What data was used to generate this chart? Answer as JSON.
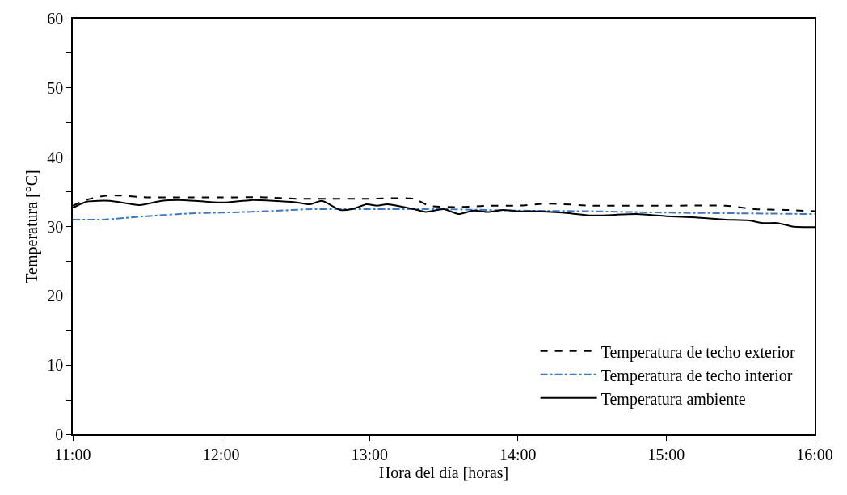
{
  "chart_data": {
    "type": "line",
    "xlabel": "Hora del día [horas]",
    "ylabel": "Temperatura [°C]",
    "xlim": [
      11,
      16
    ],
    "xticks": [
      {
        "value": 11,
        "label": "11:00"
      },
      {
        "value": 12,
        "label": "12:00"
      },
      {
        "value": 13,
        "label": "13:00"
      },
      {
        "value": 14,
        "label": "14:00"
      },
      {
        "value": 15,
        "label": "15:00"
      },
      {
        "value": 16,
        "label": "16:00"
      }
    ],
    "ylim": [
      0,
      60
    ],
    "yticks": [
      0,
      {
        "value": 5,
        "label": null
      },
      10,
      {
        "value": 15,
        "label": null
      },
      20,
      {
        "value": 25,
        "label": null
      },
      30,
      {
        "value": 35,
        "label": null
      },
      40,
      {
        "value": 45,
        "label": null
      },
      50,
      {
        "value": 55,
        "label": null
      },
      60
    ],
    "legend": "bottom right",
    "marker": "none",
    "series": [
      {
        "name": "Temperatura de techo exterior",
        "color": "#000000",
        "line_style": "dashed",
        "x": [
          11,
          11.1,
          11.25,
          11.5,
          11.75,
          12,
          12.3,
          12.5,
          12.75,
          13,
          13.3,
          13.4,
          13.6,
          13.8,
          14,
          14.2,
          14.5,
          14.8,
          15,
          15.4,
          15.6,
          15.8,
          16
        ],
        "values": [
          33,
          33.9,
          34.5,
          34.2,
          34.2,
          34.2,
          34.2,
          34,
          34,
          34,
          34,
          33,
          32.8,
          33,
          33,
          33.3,
          33,
          33,
          33,
          33,
          32.5,
          32.4,
          32.2
        ]
      },
      {
        "name": "Temperatura de techo interior",
        "color": "#3c78c8",
        "line_style": "dashdot",
        "x": [
          11,
          11.2,
          11.5,
          11.8,
          12,
          12.3,
          12.6,
          13,
          13.5,
          14,
          14.5,
          15,
          15.5,
          16
        ],
        "values": [
          31,
          31,
          31.5,
          31.9,
          32,
          32.2,
          32.5,
          32.5,
          32.5,
          32.3,
          32.2,
          32,
          31.9,
          31.8
        ]
      },
      {
        "name": "Temperatura ambiente",
        "color": "#000000",
        "line_style": "solid",
        "x": [
          11,
          11.1,
          11.25,
          11.45,
          11.6,
          11.75,
          11.95,
          12.05,
          12.2,
          12.35,
          12.5,
          12.6,
          12.68,
          12.8,
          12.88,
          12.98,
          13.05,
          13.12,
          13.3,
          13.38,
          13.5,
          13.6,
          13.7,
          13.8,
          13.9,
          14,
          14.1,
          14.3,
          14.5,
          14.8,
          15,
          15.2,
          15.4,
          15.55,
          15.65,
          15.75,
          15.85,
          16
        ],
        "values": [
          32.7,
          33.6,
          33.7,
          33.1,
          33.7,
          33.8,
          33.5,
          33.5,
          33.8,
          33.7,
          33.5,
          33.2,
          33.7,
          32.4,
          32.5,
          33.2,
          33,
          33.2,
          32.5,
          32.1,
          32.5,
          31.8,
          32.3,
          32.1,
          32.4,
          32.2,
          32.2,
          32,
          31.6,
          31.8,
          31.5,
          31.3,
          31,
          30.9,
          30.5,
          30.5,
          30,
          29.9
        ]
      }
    ]
  }
}
